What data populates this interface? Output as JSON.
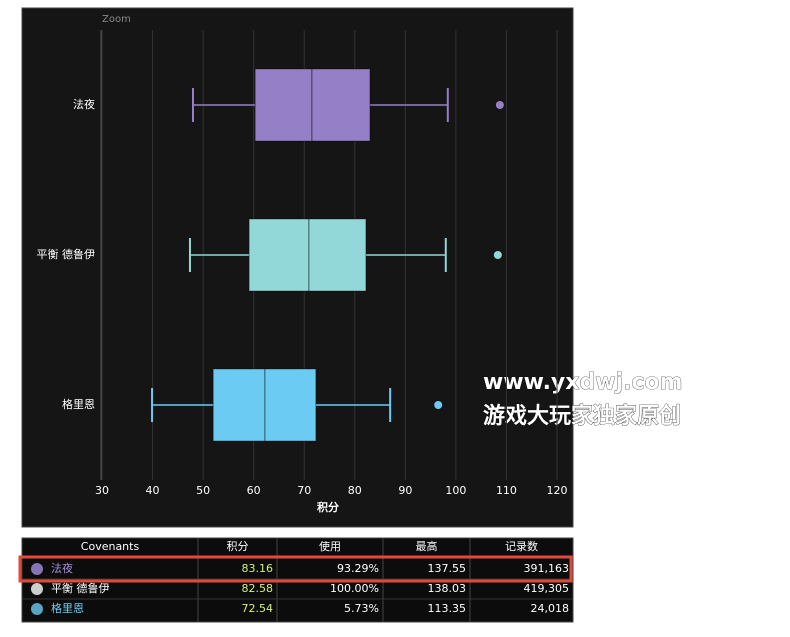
{
  "chart_data": {
    "type": "box",
    "top_label": "Zoom",
    "x_label": "积分",
    "categories": [
      "法夜",
      "平衡 德鲁伊",
      "格里恩"
    ],
    "colors": [
      "#9580c8",
      "#92d8d8",
      "#6ccbf2"
    ],
    "boxes": [
      {
        "low": 48.0,
        "q1": 60.3,
        "median": 71.5,
        "q3": 83.0,
        "high": 98.4,
        "outliers": [
          108.7
        ]
      },
      {
        "low": 47.4,
        "q1": 59.1,
        "median": 70.9,
        "q3": 82.2,
        "high": 98.0,
        "outliers": [
          108.3
        ]
      },
      {
        "low": 39.9,
        "q1": 52.0,
        "median": 62.2,
        "q3": 72.3,
        "high": 87.0,
        "outliers": [
          96.5
        ]
      }
    ],
    "xlim": [
      30,
      120
    ],
    "xticks": [
      30,
      40,
      50,
      60,
      70,
      80,
      90,
      100,
      110,
      120
    ],
    "grid": true
  },
  "table": {
    "columns": [
      "Covenants",
      "积分",
      "使用",
      "最高",
      "记录数"
    ],
    "rows": [
      [
        "法夜",
        "83.16",
        "93.29%",
        "137.55",
        "391,163"
      ],
      [
        "平衡 德鲁伊",
        "82.58",
        "100.00%",
        "138.03",
        "419,305"
      ],
      [
        "格里恩",
        "72.54",
        "5.73%",
        "113.35",
        "24,018"
      ]
    ],
    "name_colors": [
      "#a58ee0",
      "#ffffff",
      "#6ccbf2"
    ],
    "score_color": "#d4f07a",
    "highlight_row": 0
  },
  "watermark": [
    "www.yxdwj.com",
    "游戏大玩家独家原创"
  ]
}
